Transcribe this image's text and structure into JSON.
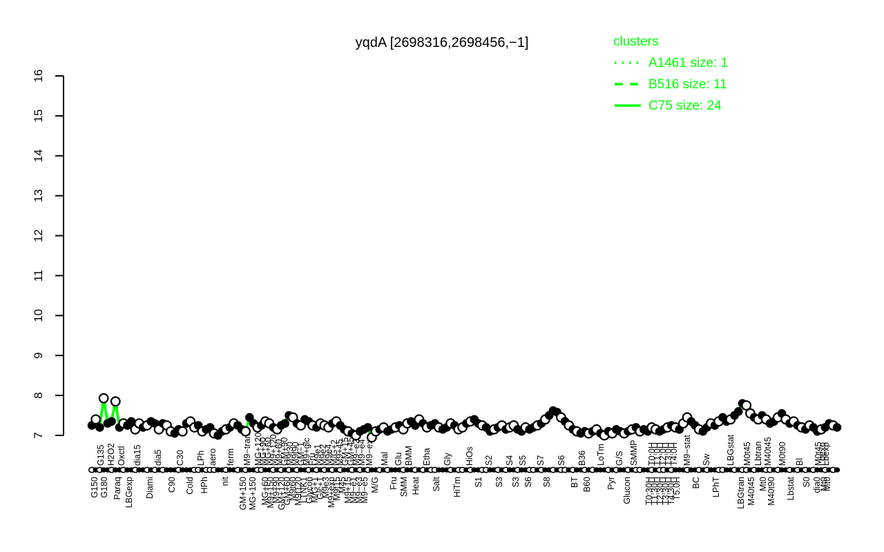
{
  "title": "yqdA [2698316,2698456,−1]",
  "colors": {
    "cluster_green": "#00ff00",
    "point_fill": "#000000",
    "point_open_fill": "#ffffff",
    "axis": "#000000",
    "background": "#ffffff"
  },
  "legend": {
    "title": "clusters",
    "items": [
      {
        "label": "A1461 size: 1",
        "line_style": "dotted"
      },
      {
        "label": "B516 size: 11",
        "line_style": "dashed"
      },
      {
        "label": "C75 size: 24",
        "line_style": "solid"
      }
    ]
  },
  "chart_data": {
    "type": "line",
    "title": "yqdA [2698316,2698456,−1]",
    "xlabel": "",
    "ylabel": "",
    "ylim": [
      7,
      16
    ],
    "yticks": [
      7,
      8,
      9,
      10,
      11,
      12,
      13,
      14,
      15,
      16
    ],
    "grid": false,
    "legend_position": "topright",
    "legend_title": "clusters",
    "legend_entries": [
      "A1461 size: 1",
      "B516 size: 11",
      "C75 size: 24"
    ],
    "series": [
      {
        "name": "yqdA expression (log2)",
        "values": [
          7.25,
          7.4,
          7.2,
          7.93,
          7.3,
          7.35,
          7.85,
          7.2,
          7.3,
          7.25,
          7.35,
          7.15,
          7.3,
          7.2,
          7.25,
          7.35,
          7.3,
          7.15,
          7.3,
          7.25,
          7.1,
          7.05,
          7.15,
          7.1,
          7.3,
          7.35,
          7.2,
          7.25,
          7.1,
          7.15,
          7.2,
          7.05,
          7.0,
          7.1,
          7.15,
          7.2,
          7.3,
          7.25,
          7.15,
          7.1,
          7.45,
          7.3,
          7.2,
          7.25,
          7.35,
          7.3,
          7.2,
          7.15,
          7.25,
          7.3,
          7.5,
          7.45,
          7.3,
          7.25,
          7.4,
          7.35,
          7.25,
          7.2,
          7.3,
          7.25,
          7.2,
          7.3,
          7.35,
          7.25,
          7.15,
          7.1,
          7.05,
          7.0,
          7.1,
          7.15,
          7.2,
          6.95,
          7.1,
          7.15,
          7.2,
          7.1,
          7.15,
          7.2,
          7.25,
          7.15,
          7.3,
          7.35,
          7.25,
          7.4,
          7.3,
          7.2,
          7.25,
          7.3,
          7.2,
          7.15,
          7.2,
          7.3,
          7.25,
          7.15,
          7.2,
          7.3,
          7.35,
          7.4,
          7.3,
          7.25,
          7.2,
          7.1,
          7.15,
          7.2,
          7.25,
          7.15,
          7.2,
          7.25,
          7.15,
          7.1,
          7.2,
          7.15,
          7.2,
          7.25,
          7.3,
          7.4,
          7.5,
          7.62,
          7.58,
          7.45,
          7.35,
          7.25,
          7.15,
          7.1,
          7.05,
          7.1,
          7.05,
          7.1,
          7.15,
          7.05,
          7.0,
          7.1,
          7.05,
          7.15,
          7.1,
          7.05,
          7.1,
          7.15,
          7.2,
          7.1,
          7.15,
          7.1,
          7.2,
          7.15,
          7.1,
          7.15,
          7.2,
          7.25,
          7.2,
          7.15,
          7.3,
          7.45,
          7.35,
          7.25,
          7.15,
          7.1,
          7.2,
          7.3,
          7.25,
          7.35,
          7.45,
          7.35,
          7.4,
          7.5,
          7.6,
          7.8,
          7.75,
          7.55,
          7.45,
          7.4,
          7.5,
          7.4,
          7.3,
          7.35,
          7.45,
          7.55,
          7.4,
          7.3,
          7.35,
          7.25,
          7.2,
          7.15,
          7.25,
          7.2,
          7.1,
          7.15,
          7.2,
          7.3,
          7.25,
          7.2
        ]
      }
    ],
    "point_open": [
      0,
      1,
      0,
      1,
      0,
      0,
      1,
      0,
      1,
      0,
      0,
      1,
      1,
      0,
      1,
      0,
      0,
      1,
      0,
      1,
      1,
      0,
      0,
      1,
      0,
      1,
      1,
      0,
      1,
      0,
      0,
      1,
      0,
      0,
      1,
      0,
      1,
      0,
      0,
      1,
      0,
      0,
      1,
      0,
      1,
      1,
      0,
      1,
      0,
      0,
      0,
      1,
      0,
      1,
      0,
      0,
      1,
      0,
      1,
      1,
      1,
      0,
      1,
      0,
      0,
      1,
      0,
      1,
      0,
      0,
      0,
      1,
      1,
      0,
      1,
      0,
      0,
      1,
      0,
      1,
      1,
      0,
      0,
      1,
      0,
      1,
      0,
      0,
      1,
      0,
      0,
      1,
      0,
      1,
      1,
      0,
      1,
      0,
      0,
      1,
      0,
      0,
      1,
      0,
      1,
      0,
      1,
      1,
      0,
      0,
      1,
      0,
      0,
      1,
      0,
      1,
      0,
      0,
      0,
      1,
      0,
      1,
      0,
      1,
      0,
      0,
      1,
      0,
      1,
      0,
      1,
      0,
      1,
      0,
      0,
      1,
      0,
      1,
      0,
      1,
      0,
      0,
      1,
      1,
      0,
      0,
      1,
      0,
      1,
      0,
      1,
      1,
      0,
      0,
      1,
      0,
      0,
      1,
      0,
      1,
      0,
      0,
      1,
      0,
      0,
      0,
      1,
      1,
      0,
      1,
      0,
      1,
      0,
      0,
      1,
      0,
      1,
      0,
      1,
      0,
      1,
      0,
      1,
      0,
      0,
      1,
      0,
      0,
      1,
      0
    ],
    "strip_open": [
      1,
      0,
      1,
      0,
      0,
      1,
      0,
      0,
      1,
      0,
      0,
      1,
      0,
      0,
      1,
      0,
      1,
      0,
      1,
      0,
      0,
      0,
      1,
      0,
      0,
      0,
      1,
      1,
      0,
      1,
      1,
      1,
      0,
      0,
      1,
      0,
      0,
      1,
      0,
      1,
      0,
      0,
      1,
      1,
      0,
      0,
      1,
      0,
      1,
      0,
      1,
      0,
      1,
      0,
      0,
      1,
      0,
      1,
      0,
      1,
      0,
      1,
      0,
      1,
      0,
      0,
      1,
      0,
      1,
      0,
      1,
      0,
      0,
      1,
      0,
      1,
      0,
      0,
      0,
      1,
      0,
      0,
      1,
      0,
      1,
      0,
      1,
      1,
      0,
      0,
      0,
      1,
      0,
      1,
      1,
      0,
      1,
      0,
      0,
      1,
      1,
      0,
      0,
      1,
      0,
      1,
      0,
      0,
      1,
      0,
      0,
      1,
      1,
      0,
      1,
      0,
      0,
      1,
      0,
      1,
      1,
      0,
      1,
      0,
      0,
      1,
      0,
      1,
      0,
      0,
      0,
      1,
      0,
      1,
      0,
      0,
      1,
      0,
      1,
      1,
      0,
      0,
      1,
      0,
      1,
      1,
      0,
      1,
      0,
      0,
      0,
      1,
      0,
      0,
      1,
      0,
      1,
      0,
      0,
      1,
      1,
      0,
      0,
      1,
      0,
      1,
      1,
      0,
      1,
      0,
      0,
      1,
      1,
      0,
      1,
      0,
      0,
      1,
      0,
      1,
      0,
      1,
      0,
      1,
      0,
      0,
      1,
      0,
      1,
      0
    ],
    "condition_labels": [
      [
        137,
        "b",
        "G150"
      ],
      [
        146,
        "t",
        "G135"
      ],
      [
        151,
        "b",
        "G180"
      ],
      [
        161,
        "t",
        "H2O2"
      ],
      [
        170,
        "b",
        "Paraq"
      ],
      [
        176,
        "t",
        "Oxctl"
      ],
      [
        187,
        "b",
        "LBGexp"
      ],
      [
        199,
        "t",
        "dia15"
      ],
      [
        217,
        "b",
        "Diami"
      ],
      [
        229,
        "t",
        "dia5"
      ],
      [
        249,
        "b",
        "C90"
      ],
      [
        261,
        "t",
        "C30"
      ],
      [
        275,
        "b",
        "Cold"
      ],
      [
        291,
        "t",
        "LPh"
      ],
      [
        296,
        "b",
        "HPh"
      ],
      [
        308,
        "t",
        "aero"
      ],
      [
        326,
        "b",
        "nit"
      ],
      [
        334,
        "t",
        "ferm"
      ],
      [
        352,
        "b",
        "GM+150"
      ],
      [
        358,
        "t",
        "M9−tran"
      ],
      [
        366,
        "b",
        "MG+150"
      ],
      [
        374,
        "t",
        "MG+120"
      ],
      [
        381,
        "t",
        "MG+90"
      ],
      [
        384,
        "b",
        "MG+60"
      ],
      [
        388,
        "t",
        "MG+60"
      ],
      [
        392,
        "b",
        "M9+150"
      ],
      [
        396,
        "t",
        "M9+120"
      ],
      [
        400,
        "b",
        "M9+90"
      ],
      [
        404,
        "t",
        "M9+60"
      ],
      [
        408,
        "b",
        "GM+120"
      ],
      [
        412,
        "t",
        "GM+90"
      ],
      [
        416,
        "b",
        "GM+60"
      ],
      [
        420,
        "t",
        "M9t30"
      ],
      [
        424,
        "b",
        "M9t60"
      ],
      [
        428,
        "t",
        "M9t90"
      ],
      [
        432,
        "b",
        "M9t120"
      ],
      [
        436,
        "t",
        "GM−1"
      ],
      [
        440,
        "b",
        "LTNK1"
      ],
      [
        444,
        "t",
        "M9+glc"
      ],
      [
        448,
        "b",
        "Glycon"
      ],
      [
        452,
        "t",
        "Fru"
      ],
      [
        456,
        "b",
        "M/G+1"
      ],
      [
        460,
        "t",
        "M9e1"
      ],
      [
        464,
        "b",
        "Glc+1"
      ],
      [
        468,
        "t",
        "M9e2"
      ],
      [
        472,
        "b",
        "M9e3"
      ],
      [
        476,
        "t",
        "M9e4"
      ],
      [
        480,
        "b",
        "M9+exp"
      ],
      [
        484,
        "t",
        "M/G+2"
      ],
      [
        488,
        "b",
        "M9t15"
      ],
      [
        492,
        "t",
        "M9+45"
      ],
      [
        496,
        "b",
        "M45"
      ],
      [
        500,
        "t",
        "GM+15"
      ],
      [
        504,
        "b",
        "M9+15"
      ],
      [
        508,
        "t",
        "GM+45"
      ],
      [
        512,
        "b",
        "M9−e1"
      ],
      [
        516,
        "t",
        "M9−e2"
      ],
      [
        520,
        "b",
        "M9−e3"
      ],
      [
        524,
        "t",
        "M9−e4"
      ],
      [
        528,
        "b",
        "M9−e5"
      ],
      [
        535,
        "t",
        "M9−exp"
      ],
      [
        543,
        "b",
        "M/G"
      ],
      [
        557,
        "t",
        "Mal"
      ],
      [
        570,
        "b",
        "Fru"
      ],
      [
        577,
        "t",
        "Glu"
      ],
      [
        585,
        "b",
        "SMM"
      ],
      [
        592,
        "t",
        "BMM"
      ],
      [
        602,
        "b",
        "Heat"
      ],
      [
        618,
        "t",
        "Etha"
      ],
      [
        632,
        "b",
        "Salt"
      ],
      [
        648,
        "t",
        "Gly"
      ],
      [
        662,
        "b",
        "HiTm"
      ],
      [
        680,
        "t",
        "HiOs"
      ],
      [
        693,
        "b",
        "S1"
      ],
      [
        708,
        "t",
        "S2"
      ],
      [
        723,
        "b",
        "S3"
      ],
      [
        738,
        "t",
        "S4"
      ],
      [
        747,
        "b",
        "S3"
      ],
      [
        757,
        "t",
        "S5"
      ],
      [
        765,
        "b",
        "S6"
      ],
      [
        783,
        "t",
        "S7"
      ],
      [
        792,
        "b",
        "S8"
      ],
      [
        813,
        "t",
        "S6"
      ],
      [
        832,
        "b",
        "BT"
      ],
      [
        843,
        "t",
        "B36"
      ],
      [
        850,
        "b",
        "B60"
      ],
      [
        870,
        "t",
        "LoTm"
      ],
      [
        885,
        "b",
        "Pyr"
      ],
      [
        897,
        "t",
        "G/S"
      ],
      [
        908,
        "b",
        "Glucon"
      ],
      [
        918,
        "t",
        "SMMP"
      ],
      [
        940,
        "b",
        "T0:30H"
      ],
      [
        944,
        "t",
        "T0:0H"
      ],
      [
        948,
        "b",
        "T1:30H"
      ],
      [
        952,
        "t",
        "T1:0H"
      ],
      [
        956,
        "b",
        "T2:30H"
      ],
      [
        960,
        "t",
        "T2:0H"
      ],
      [
        964,
        "b",
        "T3:30H"
      ],
      [
        968,
        "t",
        "T3:0H"
      ],
      [
        972,
        "b",
        "T4:30H"
      ],
      [
        976,
        "t",
        "T4:0H"
      ],
      [
        980,
        "b",
        "T5.0H"
      ],
      [
        995,
        "t",
        "M9−stat"
      ],
      [
        1008,
        "b",
        "BC"
      ],
      [
        1023,
        "t",
        "Sw"
      ],
      [
        1037,
        "b",
        "LPhT"
      ],
      [
        1058,
        "t",
        "LBGstat"
      ],
      [
        1073,
        "b",
        "LBGtran"
      ],
      [
        1082,
        "t",
        "M0t45"
      ],
      [
        1088,
        "b",
        "M40t45"
      ],
      [
        1098,
        "t",
        "Lbtran"
      ],
      [
        1105,
        "b",
        "Mt0"
      ],
      [
        1112,
        "t",
        "M40t45"
      ],
      [
        1117,
        "b",
        "M40t90"
      ],
      [
        1133,
        "t",
        "M0t90"
      ],
      [
        1145,
        "b",
        "Lbstat"
      ],
      [
        1158,
        "t",
        "Bl"
      ],
      [
        1168,
        "b",
        "S0"
      ],
      [
        1183,
        "b",
        "dia0"
      ],
      [
        1185,
        "t",
        "M0t45"
      ],
      [
        1191,
        "t",
        "Lbexp"
      ],
      [
        1193,
        "b",
        "Mt0"
      ],
      [
        1196,
        "t",
        "Lbexp"
      ],
      [
        1198,
        "b",
        "Mt0"
      ]
    ]
  }
}
